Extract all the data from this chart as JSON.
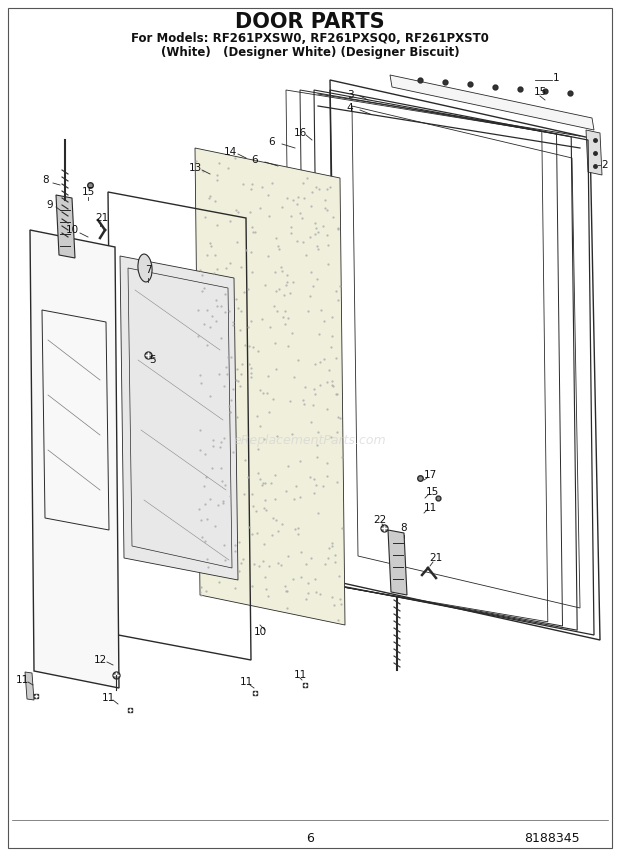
{
  "title": "DOOR PARTS",
  "subtitle_line1": "For Models: RF261PXSW0, RF261PXSQ0, RF261PXST0",
  "subtitle_line2": "(White)   (Designer White) (Designer Biscuit)",
  "page_number": "6",
  "part_number": "8188345",
  "background_color": "#ffffff",
  "title_fontsize": 15,
  "subtitle_fontsize": 8.5,
  "footer_fontsize": 9,
  "watermark": "eReplacementParts.com",
  "watermark_color": "#d0d0d0",
  "diagram_color": "#2a2a2a",
  "label_fontsize": 7.5,
  "border_color": "#555555"
}
